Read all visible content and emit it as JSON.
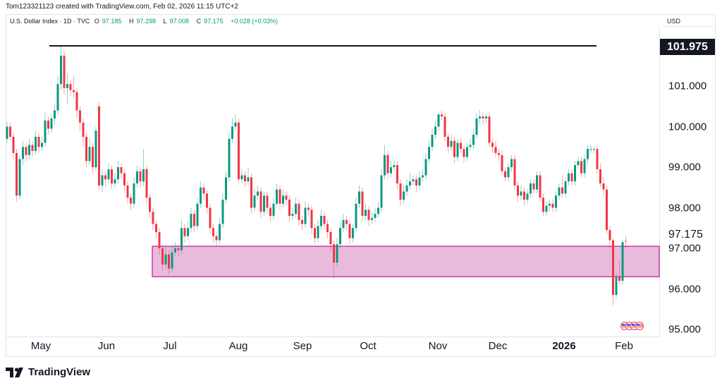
{
  "header": {
    "creator": "Tom123321123 created with TradingView.com, Feb 02, 2026 11:15 UTC+2",
    "symbol": "U.S. Dollar Index · 1D · TVC",
    "open_label": "O",
    "open": "97.185",
    "high_label": "H",
    "high": "97.298",
    "low_label": "L",
    "low": "97.008",
    "close_label": "C",
    "close": "97.175",
    "change": "+0.028 (+0.03%)"
  },
  "currency": "USD",
  "brand": "TradingView",
  "colors": {
    "up": "#089981",
    "down": "#f23645",
    "zone_fill": "#e8bbdc",
    "zone_border": "#c2188b",
    "level_line": "#131722"
  },
  "chart_data": {
    "type": "candlestick",
    "title": "",
    "y_axis": {
      "ticks": [
        "101.000",
        "100.000",
        "99.000",
        "98.000",
        "97.000",
        "96.000",
        "95.000"
      ],
      "tick_values": [
        101,
        100,
        99,
        98,
        97,
        96,
        95
      ],
      "range": [
        94.9,
        102.3
      ]
    },
    "x_axis": {
      "ticks": [
        "May",
        "Jun",
        "Jul",
        "Aug",
        "Sep",
        "Oct",
        "Nov",
        "Dec",
        "2026",
        "Feb"
      ],
      "bold_ticks": [
        "2026"
      ]
    },
    "resistance_level": {
      "price": 101.975,
      "label": "101.975"
    },
    "last_price": {
      "price": 97.175,
      "label": "97.175"
    },
    "support_zone": {
      "top": 97.05,
      "bottom": 96.3
    },
    "candles": [
      [
        99.7,
        100.12,
        99.6,
        100.0
      ],
      [
        100.0,
        100.1,
        99.65,
        99.75
      ],
      [
        99.75,
        99.85,
        99.2,
        99.35
      ],
      [
        99.35,
        99.45,
        98.15,
        98.3
      ],
      [
        98.3,
        99.3,
        98.2,
        99.2
      ],
      [
        99.2,
        99.65,
        99.05,
        99.5
      ],
      [
        99.5,
        99.6,
        99.15,
        99.3
      ],
      [
        99.3,
        99.7,
        99.2,
        99.55
      ],
      [
        99.55,
        99.65,
        99.25,
        99.4
      ],
      [
        99.4,
        99.9,
        99.3,
        99.75
      ],
      [
        99.75,
        99.85,
        99.35,
        99.5
      ],
      [
        99.5,
        99.75,
        99.4,
        99.6
      ],
      [
        99.6,
        100.35,
        99.5,
        100.15
      ],
      [
        100.15,
        100.25,
        99.8,
        99.95
      ],
      [
        99.95,
        100.3,
        99.85,
        100.2
      ],
      [
        100.2,
        100.55,
        100.05,
        100.4
      ],
      [
        100.4,
        101.25,
        100.3,
        101.05
      ],
      [
        101.05,
        101.975,
        100.9,
        101.75
      ],
      [
        101.75,
        101.85,
        100.8,
        100.95
      ],
      [
        100.95,
        101.3,
        100.55,
        101.05
      ],
      [
        101.05,
        101.15,
        100.75,
        100.9
      ],
      [
        100.9,
        101.25,
        100.7,
        100.85
      ],
      [
        100.85,
        100.95,
        100.2,
        100.4
      ],
      [
        100.4,
        100.5,
        99.9,
        100.1
      ],
      [
        100.1,
        100.2,
        99.5,
        99.75
      ],
      [
        99.75,
        99.85,
        99.0,
        99.15
      ],
      [
        99.15,
        99.7,
        99.05,
        99.5
      ],
      [
        99.5,
        99.6,
        98.85,
        99.0
      ],
      [
        99.0,
        100.0,
        98.9,
        99.9
      ],
      [
        100.5,
        100.6,
        98.45,
        98.55
      ],
      [
        98.55,
        98.95,
        98.4,
        98.8
      ],
      [
        98.8,
        98.9,
        98.5,
        98.7
      ],
      [
        98.7,
        99.1,
        98.6,
        98.95
      ],
      [
        98.95,
        99.05,
        98.45,
        98.6
      ],
      [
        98.6,
        98.85,
        98.5,
        98.7
      ],
      [
        98.7,
        99.15,
        98.6,
        99.0
      ],
      [
        99.0,
        99.1,
        98.7,
        98.85
      ],
      [
        98.85,
        98.95,
        98.4,
        98.55
      ],
      [
        98.55,
        98.65,
        98.1,
        98.25
      ],
      [
        98.25,
        98.35,
        97.95,
        98.1
      ],
      [
        98.1,
        98.75,
        98.0,
        98.6
      ],
      [
        98.6,
        99.05,
        98.5,
        98.9
      ],
      [
        98.9,
        99.0,
        98.5,
        98.65
      ],
      [
        98.65,
        99.45,
        98.55,
        98.95
      ],
      [
        98.95,
        99.05,
        98.1,
        98.25
      ],
      [
        98.25,
        98.35,
        97.75,
        97.9
      ],
      [
        97.9,
        98.0,
        97.45,
        97.6
      ],
      [
        97.6,
        97.7,
        97.25,
        97.4
      ],
      [
        97.4,
        97.5,
        96.85,
        97.0
      ],
      [
        97.0,
        97.1,
        96.45,
        96.6
      ],
      [
        96.6,
        97.05,
        96.5,
        96.85
      ],
      [
        96.85,
        96.95,
        96.35,
        96.5
      ],
      [
        96.5,
        97.05,
        96.4,
        96.9
      ],
      [
        96.9,
        97.15,
        96.8,
        97.0
      ],
      [
        97.0,
        97.1,
        96.8,
        96.95
      ],
      [
        96.95,
        97.7,
        96.85,
        97.5
      ],
      [
        97.5,
        97.6,
        97.15,
        97.3
      ],
      [
        97.3,
        97.65,
        97.2,
        97.5
      ],
      [
        97.5,
        98.0,
        97.4,
        97.85
      ],
      [
        97.85,
        97.95,
        97.4,
        97.55
      ],
      [
        97.55,
        98.25,
        97.45,
        98.1
      ],
      [
        98.1,
        98.65,
        98.0,
        98.5
      ],
      [
        98.5,
        98.6,
        98.2,
        98.35
      ],
      [
        98.35,
        98.45,
        97.85,
        98.0
      ],
      [
        98.0,
        98.1,
        97.35,
        97.5
      ],
      [
        97.5,
        97.6,
        97.15,
        97.3
      ],
      [
        97.3,
        97.4,
        97.05,
        97.2
      ],
      [
        97.2,
        97.75,
        97.1,
        97.6
      ],
      [
        97.6,
        98.35,
        97.5,
        98.2
      ],
      [
        98.2,
        98.9,
        98.1,
        98.75
      ],
      [
        98.75,
        99.85,
        98.65,
        99.7
      ],
      [
        99.7,
        100.2,
        99.6,
        100.0
      ],
      [
        100.0,
        100.3,
        99.9,
        100.1
      ],
      [
        100.1,
        100.2,
        98.6,
        98.7
      ],
      [
        98.7,
        98.95,
        98.6,
        98.8
      ],
      [
        98.8,
        98.9,
        98.5,
        98.65
      ],
      [
        98.65,
        99.0,
        98.55,
        98.75
      ],
      [
        98.75,
        98.85,
        97.85,
        98.0
      ],
      [
        98.0,
        98.45,
        97.9,
        98.3
      ],
      [
        98.3,
        98.55,
        98.2,
        98.4
      ],
      [
        98.4,
        98.5,
        97.75,
        97.9
      ],
      [
        97.9,
        98.4,
        97.8,
        98.3
      ],
      [
        98.3,
        98.4,
        97.85,
        98.0
      ],
      [
        98.0,
        98.1,
        97.65,
        97.8
      ],
      [
        97.8,
        98.25,
        97.7,
        98.1
      ],
      [
        98.1,
        98.6,
        98.0,
        98.45
      ],
      [
        98.45,
        98.55,
        97.95,
        98.1
      ],
      [
        98.1,
        98.45,
        98.0,
        98.3
      ],
      [
        98.3,
        98.4,
        98.05,
        98.2
      ],
      [
        98.2,
        98.3,
        97.65,
        97.8
      ],
      [
        97.8,
        98.0,
        97.7,
        97.85
      ],
      [
        97.85,
        98.25,
        97.75,
        98.1
      ],
      [
        98.1,
        98.2,
        97.55,
        97.7
      ],
      [
        97.7,
        97.8,
        97.45,
        97.6
      ],
      [
        97.6,
        98.15,
        97.5,
        98.0
      ],
      [
        98.0,
        98.1,
        97.8,
        97.95
      ],
      [
        97.95,
        98.05,
        97.35,
        97.5
      ],
      [
        97.5,
        97.6,
        97.1,
        97.25
      ],
      [
        97.25,
        97.7,
        97.15,
        97.55
      ],
      [
        97.55,
        97.95,
        97.45,
        97.8
      ],
      [
        97.8,
        97.9,
        97.45,
        97.6
      ],
      [
        97.6,
        97.7,
        97.25,
        97.4
      ],
      [
        97.4,
        97.5,
        96.95,
        97.1
      ],
      [
        97.1,
        97.2,
        96.25,
        96.65
      ],
      [
        96.65,
        97.25,
        96.55,
        97.1
      ],
      [
        97.1,
        97.65,
        97.0,
        97.5
      ],
      [
        97.5,
        97.85,
        97.4,
        97.7
      ],
      [
        97.7,
        97.8,
        97.45,
        97.6
      ],
      [
        97.6,
        97.7,
        97.1,
        97.25
      ],
      [
        97.25,
        97.6,
        97.15,
        97.5
      ],
      [
        97.5,
        98.25,
        97.4,
        98.1
      ],
      [
        98.1,
        98.55,
        98.0,
        98.4
      ],
      [
        98.4,
        98.5,
        97.65,
        97.8
      ],
      [
        97.8,
        98.1,
        97.7,
        97.95
      ],
      [
        97.95,
        98.05,
        97.55,
        97.7
      ],
      [
        97.7,
        97.9,
        97.6,
        97.75
      ],
      [
        97.75,
        98.0,
        97.65,
        97.85
      ],
      [
        97.85,
        98.15,
        97.75,
        98.0
      ],
      [
        98.0,
        98.95,
        97.9,
        98.8
      ],
      [
        98.8,
        99.55,
        98.7,
        99.3
      ],
      [
        99.3,
        99.4,
        98.7,
        98.85
      ],
      [
        98.85,
        99.15,
        98.75,
        99.0
      ],
      [
        99.0,
        99.2,
        98.9,
        99.05
      ],
      [
        99.05,
        99.15,
        98.45,
        98.6
      ],
      [
        98.6,
        98.7,
        98.05,
        98.2
      ],
      [
        98.2,
        98.55,
        98.1,
        98.4
      ],
      [
        98.4,
        98.7,
        98.3,
        98.55
      ],
      [
        98.55,
        98.85,
        98.45,
        98.65
      ],
      [
        98.65,
        98.8,
        98.55,
        98.7
      ],
      [
        98.7,
        98.8,
        98.4,
        98.55
      ],
      [
        98.55,
        98.9,
        98.45,
        98.75
      ],
      [
        98.75,
        98.95,
        98.65,
        98.8
      ],
      [
        98.8,
        99.35,
        98.7,
        99.2
      ],
      [
        99.2,
        99.65,
        99.1,
        99.5
      ],
      [
        99.5,
        99.95,
        99.4,
        99.8
      ],
      [
        99.8,
        100.15,
        99.7,
        100.0
      ],
      [
        100.0,
        100.35,
        99.9,
        100.3
      ],
      [
        100.3,
        100.4,
        100.15,
        100.25
      ],
      [
        100.25,
        100.35,
        99.65,
        99.75
      ],
      [
        99.75,
        99.85,
        99.35,
        99.5
      ],
      [
        99.5,
        99.8,
        99.4,
        99.65
      ],
      [
        99.65,
        99.75,
        99.1,
        99.25
      ],
      [
        99.25,
        99.7,
        99.15,
        99.6
      ],
      [
        99.6,
        99.7,
        99.35,
        99.45
      ],
      [
        99.45,
        99.55,
        99.1,
        99.25
      ],
      [
        99.25,
        99.6,
        99.15,
        99.5
      ],
      [
        99.5,
        99.7,
        99.4,
        99.55
      ],
      [
        99.55,
        99.95,
        99.45,
        99.8
      ],
      [
        99.8,
        100.35,
        99.7,
        100.2
      ],
      [
        100.2,
        100.4,
        100.05,
        100.25
      ],
      [
        100.25,
        100.35,
        100.05,
        100.2
      ],
      [
        100.2,
        100.3,
        100.1,
        100.25
      ],
      [
        100.25,
        100.35,
        99.5,
        99.6
      ],
      [
        99.6,
        99.7,
        99.35,
        99.5
      ],
      [
        99.5,
        99.65,
        99.25,
        99.35
      ],
      [
        99.35,
        99.45,
        99.15,
        99.3
      ],
      [
        99.3,
        99.4,
        98.8,
        98.9
      ],
      [
        98.9,
        99.0,
        98.65,
        98.75
      ],
      [
        98.75,
        99.1,
        98.65,
        99.0
      ],
      [
        99.0,
        99.3,
        98.9,
        99.2
      ],
      [
        99.2,
        99.3,
        98.45,
        98.55
      ],
      [
        98.55,
        98.65,
        98.15,
        98.3
      ],
      [
        98.3,
        98.55,
        98.2,
        98.4
      ],
      [
        98.4,
        98.5,
        98.05,
        98.2
      ],
      [
        98.2,
        98.45,
        98.1,
        98.35
      ],
      [
        98.35,
        98.7,
        98.25,
        98.6
      ],
      [
        98.6,
        98.7,
        98.35,
        98.45
      ],
      [
        98.45,
        98.9,
        98.35,
        98.8
      ],
      [
        98.8,
        98.9,
        98.15,
        98.25
      ],
      [
        98.25,
        98.35,
        97.8,
        97.9
      ],
      [
        97.9,
        98.15,
        97.8,
        98.05
      ],
      [
        98.05,
        98.2,
        97.9,
        98.1
      ],
      [
        98.1,
        98.2,
        97.9,
        98.0
      ],
      [
        98.0,
        98.4,
        97.9,
        98.3
      ],
      [
        98.3,
        98.6,
        98.2,
        98.5
      ],
      [
        98.5,
        98.8,
        98.25,
        98.35
      ],
      [
        98.35,
        98.75,
        98.25,
        98.65
      ],
      [
        98.65,
        98.95,
        98.55,
        98.85
      ],
      [
        98.85,
        98.95,
        98.55,
        98.65
      ],
      [
        98.65,
        99.15,
        98.55,
        99.05
      ],
      [
        99.05,
        99.25,
        98.95,
        99.15
      ],
      [
        99.15,
        99.25,
        98.75,
        98.85
      ],
      [
        98.85,
        99.3,
        98.75,
        99.2
      ],
      [
        99.2,
        99.55,
        99.1,
        99.45
      ],
      [
        99.45,
        99.55,
        99.35,
        99.45
      ],
      [
        99.45,
        99.5,
        99.35,
        99.45
      ],
      [
        99.45,
        99.5,
        98.85,
        98.95
      ],
      [
        98.95,
        99.1,
        98.5,
        98.6
      ],
      [
        98.6,
        98.75,
        98.3,
        98.45
      ],
      [
        98.45,
        98.55,
        97.35,
        97.45
      ],
      [
        97.45,
        97.55,
        97.0,
        97.2
      ],
      [
        97.2,
        97.25,
        95.6,
        95.85
      ],
      [
        95.85,
        96.4,
        95.75,
        96.3
      ],
      [
        96.3,
        96.7,
        96.1,
        96.2
      ],
      [
        96.2,
        97.2,
        96.1,
        97.15
      ],
      [
        97.185,
        97.298,
        97.008,
        97.175
      ]
    ]
  }
}
